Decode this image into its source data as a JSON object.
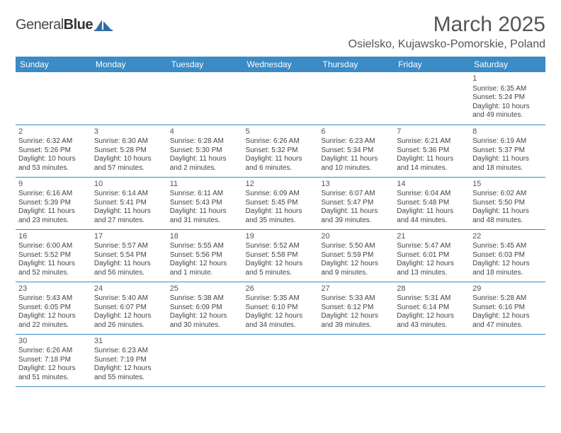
{
  "logo": {
    "word1": "General",
    "word2": "Blue",
    "mark_color": "#2f6fa8"
  },
  "title": "March 2025",
  "location": "Osielsko, Kujawsko-Pomorskie, Poland",
  "header_bg": "#3b8bc6",
  "header_text": "#ffffff",
  "border_color": "#3b8bc6",
  "weekdays": [
    "Sunday",
    "Monday",
    "Tuesday",
    "Wednesday",
    "Thursday",
    "Friday",
    "Saturday"
  ],
  "weeks": [
    [
      null,
      null,
      null,
      null,
      null,
      null,
      {
        "n": "1",
        "sr": "Sunrise: 6:35 AM",
        "ss": "Sunset: 5:24 PM",
        "d1": "Daylight: 10 hours",
        "d2": "and 49 minutes."
      }
    ],
    [
      {
        "n": "2",
        "sr": "Sunrise: 6:32 AM",
        "ss": "Sunset: 5:26 PM",
        "d1": "Daylight: 10 hours",
        "d2": "and 53 minutes."
      },
      {
        "n": "3",
        "sr": "Sunrise: 6:30 AM",
        "ss": "Sunset: 5:28 PM",
        "d1": "Daylight: 10 hours",
        "d2": "and 57 minutes."
      },
      {
        "n": "4",
        "sr": "Sunrise: 6:28 AM",
        "ss": "Sunset: 5:30 PM",
        "d1": "Daylight: 11 hours",
        "d2": "and 2 minutes."
      },
      {
        "n": "5",
        "sr": "Sunrise: 6:26 AM",
        "ss": "Sunset: 5:32 PM",
        "d1": "Daylight: 11 hours",
        "d2": "and 6 minutes."
      },
      {
        "n": "6",
        "sr": "Sunrise: 6:23 AM",
        "ss": "Sunset: 5:34 PM",
        "d1": "Daylight: 11 hours",
        "d2": "and 10 minutes."
      },
      {
        "n": "7",
        "sr": "Sunrise: 6:21 AM",
        "ss": "Sunset: 5:36 PM",
        "d1": "Daylight: 11 hours",
        "d2": "and 14 minutes."
      },
      {
        "n": "8",
        "sr": "Sunrise: 6:19 AM",
        "ss": "Sunset: 5:37 PM",
        "d1": "Daylight: 11 hours",
        "d2": "and 18 minutes."
      }
    ],
    [
      {
        "n": "9",
        "sr": "Sunrise: 6:16 AM",
        "ss": "Sunset: 5:39 PM",
        "d1": "Daylight: 11 hours",
        "d2": "and 23 minutes."
      },
      {
        "n": "10",
        "sr": "Sunrise: 6:14 AM",
        "ss": "Sunset: 5:41 PM",
        "d1": "Daylight: 11 hours",
        "d2": "and 27 minutes."
      },
      {
        "n": "11",
        "sr": "Sunrise: 6:11 AM",
        "ss": "Sunset: 5:43 PM",
        "d1": "Daylight: 11 hours",
        "d2": "and 31 minutes."
      },
      {
        "n": "12",
        "sr": "Sunrise: 6:09 AM",
        "ss": "Sunset: 5:45 PM",
        "d1": "Daylight: 11 hours",
        "d2": "and 35 minutes."
      },
      {
        "n": "13",
        "sr": "Sunrise: 6:07 AM",
        "ss": "Sunset: 5:47 PM",
        "d1": "Daylight: 11 hours",
        "d2": "and 39 minutes."
      },
      {
        "n": "14",
        "sr": "Sunrise: 6:04 AM",
        "ss": "Sunset: 5:48 PM",
        "d1": "Daylight: 11 hours",
        "d2": "and 44 minutes."
      },
      {
        "n": "15",
        "sr": "Sunrise: 6:02 AM",
        "ss": "Sunset: 5:50 PM",
        "d1": "Daylight: 11 hours",
        "d2": "and 48 minutes."
      }
    ],
    [
      {
        "n": "16",
        "sr": "Sunrise: 6:00 AM",
        "ss": "Sunset: 5:52 PM",
        "d1": "Daylight: 11 hours",
        "d2": "and 52 minutes."
      },
      {
        "n": "17",
        "sr": "Sunrise: 5:57 AM",
        "ss": "Sunset: 5:54 PM",
        "d1": "Daylight: 11 hours",
        "d2": "and 56 minutes."
      },
      {
        "n": "18",
        "sr": "Sunrise: 5:55 AM",
        "ss": "Sunset: 5:56 PM",
        "d1": "Daylight: 12 hours",
        "d2": "and 1 minute."
      },
      {
        "n": "19",
        "sr": "Sunrise: 5:52 AM",
        "ss": "Sunset: 5:58 PM",
        "d1": "Daylight: 12 hours",
        "d2": "and 5 minutes."
      },
      {
        "n": "20",
        "sr": "Sunrise: 5:50 AM",
        "ss": "Sunset: 5:59 PM",
        "d1": "Daylight: 12 hours",
        "d2": "and 9 minutes."
      },
      {
        "n": "21",
        "sr": "Sunrise: 5:47 AM",
        "ss": "Sunset: 6:01 PM",
        "d1": "Daylight: 12 hours",
        "d2": "and 13 minutes."
      },
      {
        "n": "22",
        "sr": "Sunrise: 5:45 AM",
        "ss": "Sunset: 6:03 PM",
        "d1": "Daylight: 12 hours",
        "d2": "and 18 minutes."
      }
    ],
    [
      {
        "n": "23",
        "sr": "Sunrise: 5:43 AM",
        "ss": "Sunset: 6:05 PM",
        "d1": "Daylight: 12 hours",
        "d2": "and 22 minutes."
      },
      {
        "n": "24",
        "sr": "Sunrise: 5:40 AM",
        "ss": "Sunset: 6:07 PM",
        "d1": "Daylight: 12 hours",
        "d2": "and 26 minutes."
      },
      {
        "n": "25",
        "sr": "Sunrise: 5:38 AM",
        "ss": "Sunset: 6:09 PM",
        "d1": "Daylight: 12 hours",
        "d2": "and 30 minutes."
      },
      {
        "n": "26",
        "sr": "Sunrise: 5:35 AM",
        "ss": "Sunset: 6:10 PM",
        "d1": "Daylight: 12 hours",
        "d2": "and 34 minutes."
      },
      {
        "n": "27",
        "sr": "Sunrise: 5:33 AM",
        "ss": "Sunset: 6:12 PM",
        "d1": "Daylight: 12 hours",
        "d2": "and 39 minutes."
      },
      {
        "n": "28",
        "sr": "Sunrise: 5:31 AM",
        "ss": "Sunset: 6:14 PM",
        "d1": "Daylight: 12 hours",
        "d2": "and 43 minutes."
      },
      {
        "n": "29",
        "sr": "Sunrise: 5:28 AM",
        "ss": "Sunset: 6:16 PM",
        "d1": "Daylight: 12 hours",
        "d2": "and 47 minutes."
      }
    ],
    [
      {
        "n": "30",
        "sr": "Sunrise: 6:26 AM",
        "ss": "Sunset: 7:18 PM",
        "d1": "Daylight: 12 hours",
        "d2": "and 51 minutes."
      },
      {
        "n": "31",
        "sr": "Sunrise: 6:23 AM",
        "ss": "Sunset: 7:19 PM",
        "d1": "Daylight: 12 hours",
        "d2": "and 55 minutes."
      },
      null,
      null,
      null,
      null,
      null
    ]
  ]
}
